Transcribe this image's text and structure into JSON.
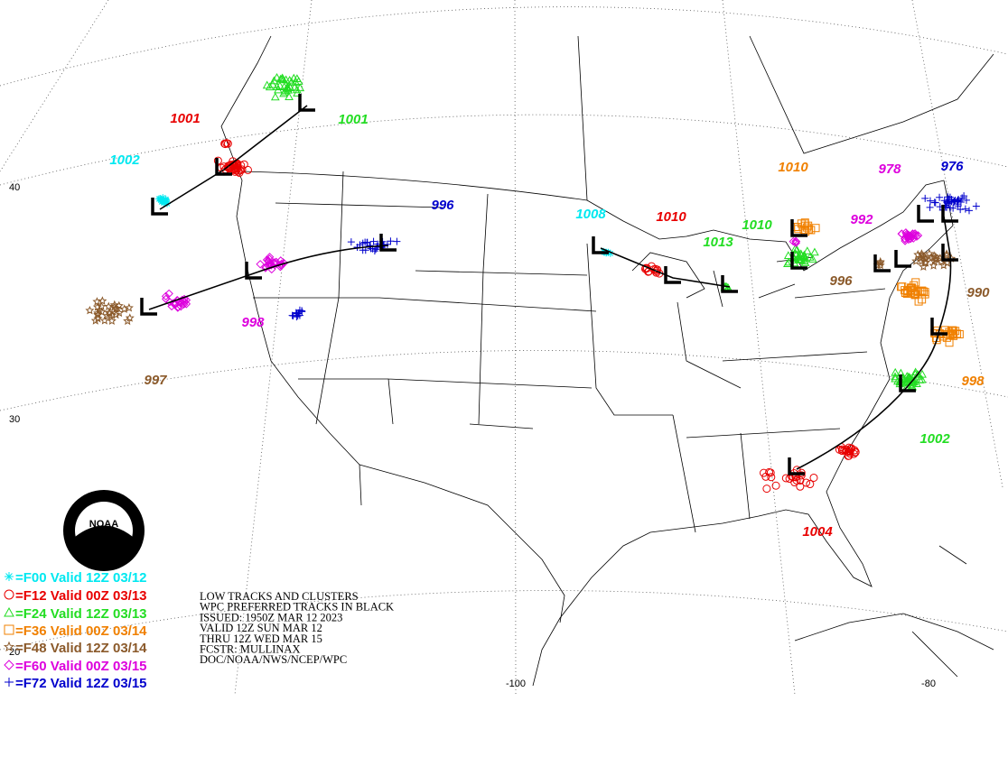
{
  "legend": [
    {
      "text": "=F00 Valid 12Z 03/12",
      "color": "#00e8f0"
    },
    {
      "text": "=F12 Valid 00Z 03/13",
      "color": "#e80000"
    },
    {
      "text": "=F24 Valid 12Z 03/13",
      "color": "#22dd22"
    },
    {
      "text": "=F36 Valid 00Z 03/14",
      "color": "#f08000"
    },
    {
      "text": "=F48 Valid 12Z 03/14",
      "color": "#8b5a2b"
    },
    {
      "text": "=F60 Valid 00Z 03/15",
      "color": "#dd00dd"
    },
    {
      "text": "=F72 Valid 12Z 03/15",
      "color": "#0000cc"
    }
  ],
  "info": [
    "LOW TRACKS AND CLUSTERS",
    "WPC PREFERRED TRACKS IN BLACK",
    "ISSUED: 1950Z MAR 12 2023",
    "VALID 12Z SUN MAR 12",
    "THRU 12Z WED MAR 15",
    "FCSTR: MULLINAX",
    "DOC/NOAA/NWS/NCEP/WPC"
  ],
  "pressure_labels": [
    {
      "text": "1001",
      "color": "#e80000"
    },
    {
      "text": "1001",
      "color": "#22dd22"
    },
    {
      "text": "1002",
      "color": "#00e8f0"
    },
    {
      "text": "996",
      "color": "#0000cc"
    },
    {
      "text": "998",
      "color": "#dd00dd"
    },
    {
      "text": "997",
      "color": "#8b5a2b"
    },
    {
      "text": "1008",
      "color": "#00e8f0"
    },
    {
      "text": "1010",
      "color": "#e80000"
    },
    {
      "text": "1010",
      "color": "#22dd22"
    },
    {
      "text": "1013",
      "color": "#22dd22"
    },
    {
      "text": "1010",
      "color": "#f08000"
    },
    {
      "text": "978",
      "color": "#dd00dd"
    },
    {
      "text": "976",
      "color": "#0000cc"
    },
    {
      "text": "992",
      "color": "#dd00dd"
    },
    {
      "text": "996",
      "color": "#8b5a2b"
    },
    {
      "text": "990",
      "color": "#8b5a2b"
    },
    {
      "text": "998",
      "color": "#f08000"
    },
    {
      "text": "1002",
      "color": "#22dd22"
    },
    {
      "text": "1004",
      "color": "#e80000"
    }
  ],
  "lat_labels": [
    "40",
    "30",
    "20"
  ],
  "lon_labels": [
    "-100",
    "-80"
  ],
  "logo": "NOAA"
}
